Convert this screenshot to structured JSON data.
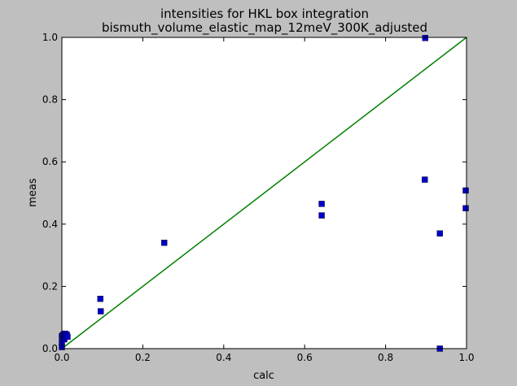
{
  "chart_data": {
    "type": "scatter",
    "title": "intensities for HKL box integration",
    "subtitle": "bismuth_volume_elastic_map_12meV_300K_adjusted",
    "xlabel": "calc",
    "ylabel": "meas",
    "xlim": [
      0,
      1
    ],
    "ylim": [
      0,
      1
    ],
    "x_ticks": [
      "0.0",
      "0.2",
      "0.4",
      "0.6",
      "0.8",
      "1.0"
    ],
    "y_ticks": [
      "0.0",
      "0.2",
      "0.4",
      "0.6",
      "0.8",
      "1.0"
    ],
    "grid": false,
    "legend": "none",
    "series": [
      {
        "marker": "square",
        "color": "#0000cc",
        "points": [
          [
            0.0,
            0.005
          ],
          [
            0.0,
            0.02
          ],
          [
            0.0,
            0.04
          ],
          [
            0.003,
            0.045
          ],
          [
            0.006,
            0.03
          ],
          [
            0.008,
            0.048
          ],
          [
            0.01,
            0.04
          ],
          [
            0.012,
            0.045
          ],
          [
            0.014,
            0.038
          ],
          [
            0.095,
            0.16
          ],
          [
            0.096,
            0.12
          ],
          [
            0.253,
            0.34
          ],
          [
            0.642,
            0.465
          ],
          [
            0.642,
            0.428
          ],
          [
            0.897,
            0.543
          ],
          [
            0.898,
            0.998
          ],
          [
            0.934,
            0.37
          ],
          [
            0.934,
            0.0
          ],
          [
            0.998,
            0.508
          ],
          [
            0.998,
            0.451
          ]
        ]
      }
    ],
    "reference_line": {
      "color": "#007f00",
      "x": [
        0,
        1
      ],
      "y": [
        0,
        1
      ]
    }
  }
}
